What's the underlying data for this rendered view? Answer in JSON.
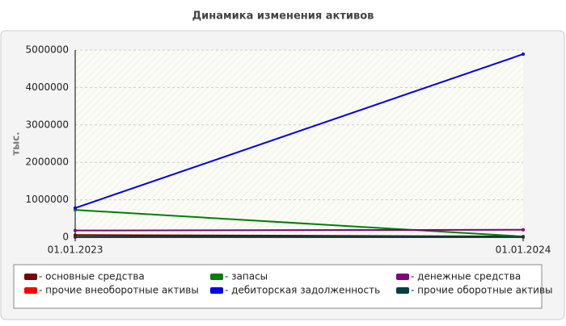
{
  "chart_data": {
    "type": "line",
    "title": "Динамика изменения активов",
    "y_label": "тыс.",
    "categories": [
      "01.01.2023",
      "01.01.2024"
    ],
    "series": [
      {
        "name": "- основные средства",
        "color": "#7a0000",
        "values": [
          60000,
          20000
        ]
      },
      {
        "name": "- прочие внеоборотные активы",
        "color": "#ff0000",
        "values": [
          0,
          0
        ]
      },
      {
        "name": "- запасы",
        "color": "#008000",
        "values": [
          730000,
          20000
        ]
      },
      {
        "name": "- дебиторская задолженность",
        "color": "#0000ee",
        "values": [
          780000,
          4890000
        ]
      },
      {
        "name": "- денежные средства",
        "color": "#800080",
        "values": [
          180000,
          200000
        ]
      },
      {
        "name": "- прочие оборотные активы",
        "color": "#004040",
        "values": [
          10000,
          10000
        ]
      }
    ],
    "ylim": [
      0,
      5000000
    ],
    "yticks": [
      0,
      1000000,
      2000000,
      3000000,
      4000000,
      5000000
    ],
    "grid": true
  }
}
